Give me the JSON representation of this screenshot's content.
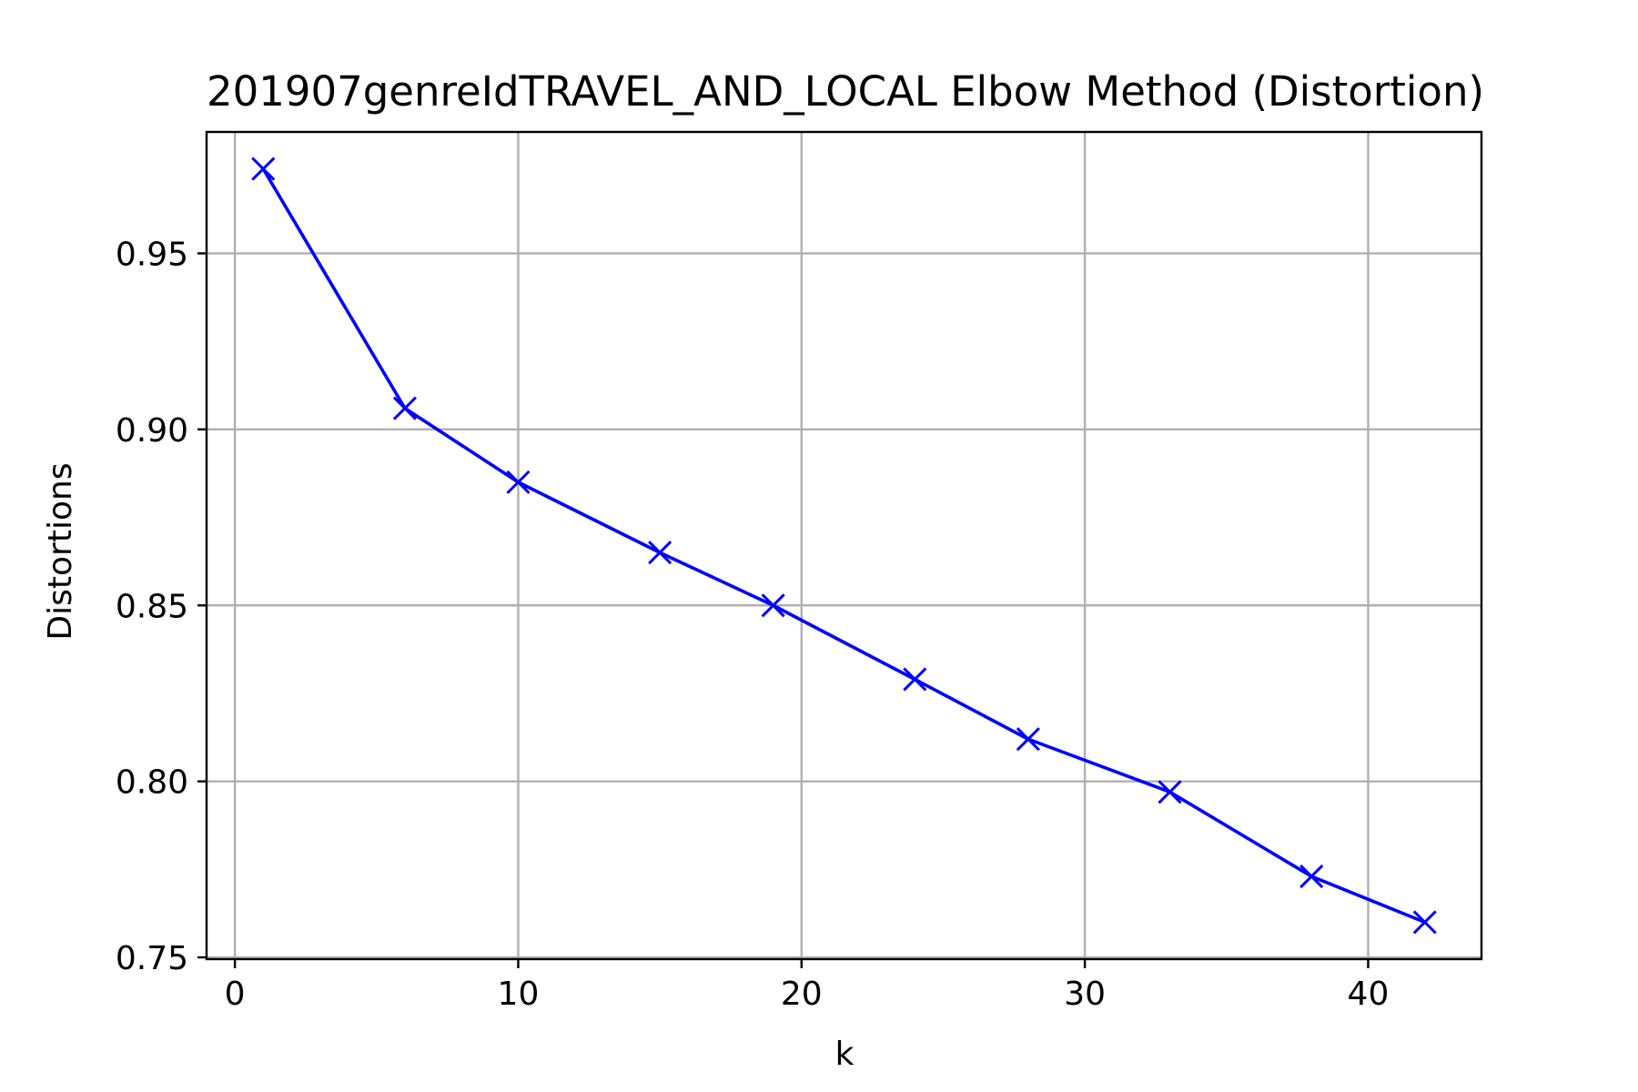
{
  "chart_data": {
    "type": "line",
    "title": "201907genreIdTRAVEL_AND_LOCAL Elbow Method (Distortion)",
    "xlabel": "k",
    "ylabel": "Distortions",
    "xlim": [
      -1,
      44
    ],
    "ylim": [
      0.7495,
      0.9845
    ],
    "xticks": [
      0,
      10,
      20,
      30,
      40
    ],
    "yticks": [
      0.75,
      0.8,
      0.85,
      0.9,
      0.95
    ],
    "xtick_labels": [
      "0",
      "10",
      "20",
      "30",
      "40"
    ],
    "ytick_labels": [
      "0.75",
      "0.80",
      "0.85",
      "0.90",
      "0.95"
    ],
    "grid": true,
    "marker": "x",
    "series": [
      {
        "color": "#0000ff",
        "x": [
          1,
          6,
          10,
          15,
          19,
          24,
          28,
          33,
          38,
          42
        ],
        "y": [
          0.974,
          0.906,
          0.885,
          0.865,
          0.85,
          0.829,
          0.812,
          0.797,
          0.773,
          0.76
        ]
      }
    ]
  }
}
